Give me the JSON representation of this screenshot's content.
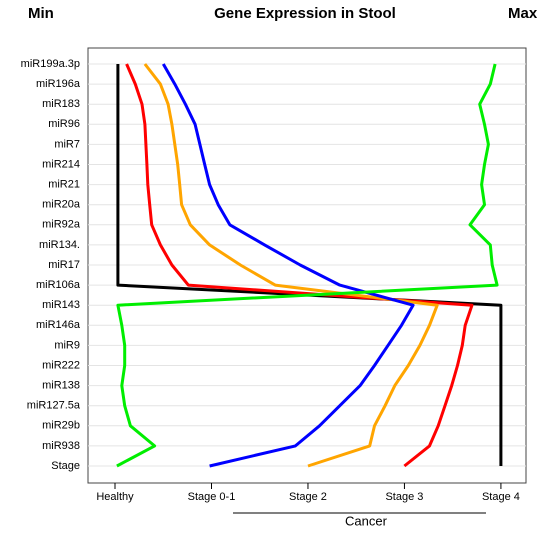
{
  "chart_data": {
    "type": "line",
    "title": "Gene Expression in Stool",
    "left_label": "Min",
    "right_label": "Max",
    "xlabel": "Cancer",
    "categories": [
      "miR199a.3p",
      "miR196a",
      "miR183",
      "miR96",
      "miR7",
      "miR214",
      "miR21",
      "miR20a",
      "miR92a",
      "miR134.",
      "miR17",
      "miR106a",
      "miR143",
      "miR146a",
      "miR9",
      "miR222",
      "miR138",
      "miR127.5a",
      "miR29b",
      "miR938",
      "Stage"
    ],
    "xlim": [
      -0.28,
      4.26
    ],
    "xticks": [
      {
        "value": 0,
        "label": "Healthy"
      },
      {
        "value": 1,
        "label": "Stage 0-1"
      },
      {
        "value": 2,
        "label": "Stage 2"
      },
      {
        "value": 3,
        "label": "Stage 3"
      },
      {
        "value": 4,
        "label": "Stage 4"
      }
    ],
    "grid": true,
    "series": [
      {
        "color": "#000000",
        "values": [
          0.03,
          0.03,
          0.03,
          0.03,
          0.03,
          0.03,
          0.03,
          0.03,
          0.03,
          0.03,
          0.03,
          0.03,
          4.0,
          4.0,
          4.0,
          4.0,
          4.0,
          4.0,
          4.0,
          4.0,
          4.0
        ]
      },
      {
        "color": "#ff0000",
        "values": [
          0.12,
          0.21,
          0.28,
          0.31,
          0.32,
          0.33,
          0.34,
          0.36,
          0.38,
          0.47,
          0.59,
          0.76,
          3.7,
          3.63,
          3.6,
          3.55,
          3.49,
          3.42,
          3.35,
          3.26,
          3.0
        ]
      },
      {
        "color": "#ffa500",
        "values": [
          0.31,
          0.47,
          0.55,
          0.59,
          0.62,
          0.65,
          0.67,
          0.69,
          0.78,
          0.98,
          1.3,
          1.66,
          3.34,
          3.26,
          3.16,
          3.04,
          2.9,
          2.8,
          2.69,
          2.64,
          2.0
        ]
      },
      {
        "color": "#0000ff",
        "values": [
          0.5,
          0.62,
          0.73,
          0.83,
          0.88,
          0.93,
          0.98,
          1.07,
          1.19,
          1.55,
          1.92,
          2.33,
          3.09,
          2.97,
          2.83,
          2.69,
          2.54,
          2.33,
          2.12,
          1.87,
          0.98
        ]
      },
      {
        "color": "#00ee00",
        "values": [
          3.94,
          3.89,
          3.78,
          3.83,
          3.87,
          3.83,
          3.8,
          3.83,
          3.68,
          3.89,
          3.91,
          3.96,
          0.03,
          0.07,
          0.1,
          0.1,
          0.07,
          0.1,
          0.16,
          0.41,
          0.02
        ]
      }
    ]
  }
}
